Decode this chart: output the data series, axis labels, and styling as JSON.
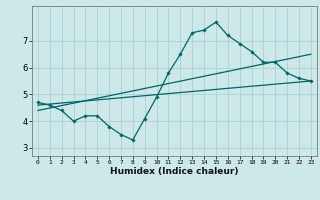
{
  "xlabel": "Humidex (Indice chaleur)",
  "bg_color": "#cce8e8",
  "grid_color": "#b0d4d4",
  "line_color": "#006666",
  "xlim": [
    -0.5,
    23.5
  ],
  "ylim": [
    2.7,
    8.3
  ],
  "xticks": [
    0,
    1,
    2,
    3,
    4,
    5,
    6,
    7,
    8,
    9,
    10,
    11,
    12,
    13,
    14,
    15,
    16,
    17,
    18,
    19,
    20,
    21,
    22,
    23
  ],
  "yticks": [
    3,
    4,
    5,
    6,
    7
  ],
  "main_x": [
    0,
    1,
    2,
    3,
    4,
    5,
    6,
    7,
    8,
    9,
    10,
    11,
    12,
    13,
    14,
    15,
    16,
    17,
    18,
    19,
    20,
    21,
    22,
    23
  ],
  "main_y": [
    4.7,
    4.6,
    4.4,
    4.0,
    4.2,
    4.2,
    3.8,
    3.5,
    3.3,
    4.1,
    4.9,
    5.8,
    6.5,
    7.3,
    7.4,
    7.7,
    7.2,
    6.9,
    6.6,
    6.2,
    6.2,
    5.8,
    5.6,
    5.5
  ],
  "line1_x": [
    0,
    23
  ],
  "line1_y": [
    4.6,
    5.5
  ],
  "line2_x": [
    0,
    23
  ],
  "line2_y": [
    4.4,
    6.5
  ]
}
